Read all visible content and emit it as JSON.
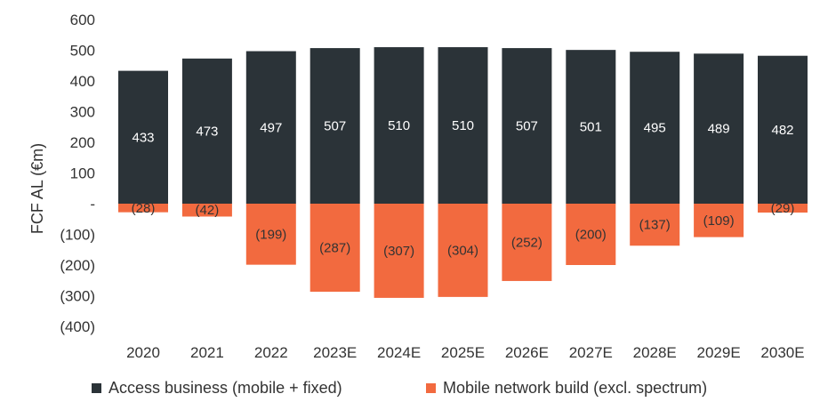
{
  "chart_data": {
    "type": "bar",
    "stacked": true,
    "categories": [
      "2020",
      "2021",
      "2022",
      "2023E",
      "2024E",
      "2025E",
      "2026E",
      "2027E",
      "2028E",
      "2029E",
      "2030E"
    ],
    "series": [
      {
        "name": "Access business (mobile + fixed)",
        "color": "#2b3338",
        "label_color": "#ffffff",
        "values": [
          433,
          473,
          497,
          507,
          510,
          510,
          507,
          501,
          495,
          489,
          482
        ],
        "labels": [
          "433",
          "473",
          "497",
          "507",
          "510",
          "510",
          "507",
          "501",
          "495",
          "489",
          "482"
        ]
      },
      {
        "name": "Mobile network build (excl. spectrum)",
        "color": "#f26a3f",
        "label_color": "#333333",
        "values": [
          -28,
          -42,
          -199,
          -287,
          -307,
          -304,
          -252,
          -200,
          -137,
          -109,
          -29
        ],
        "labels": [
          "(28)",
          "(42)",
          "(199)",
          "(287)",
          "(307)",
          "(304)",
          "(252)",
          "(200)",
          "(137)",
          "(109)",
          "(29)"
        ]
      }
    ],
    "ylabel": "FCF AL (€m)",
    "ylim": [
      -400,
      600
    ],
    "yticks": [
      600,
      500,
      400,
      300,
      200,
      100,
      0,
      -100,
      -200,
      -300,
      -400
    ],
    "ytick_labels": [
      "600",
      "500",
      "400",
      "300",
      "200",
      "100",
      "-",
      "(100)",
      "(200)",
      "(300)",
      "(400)"
    ],
    "grid": false,
    "legend_position": "bottom"
  }
}
